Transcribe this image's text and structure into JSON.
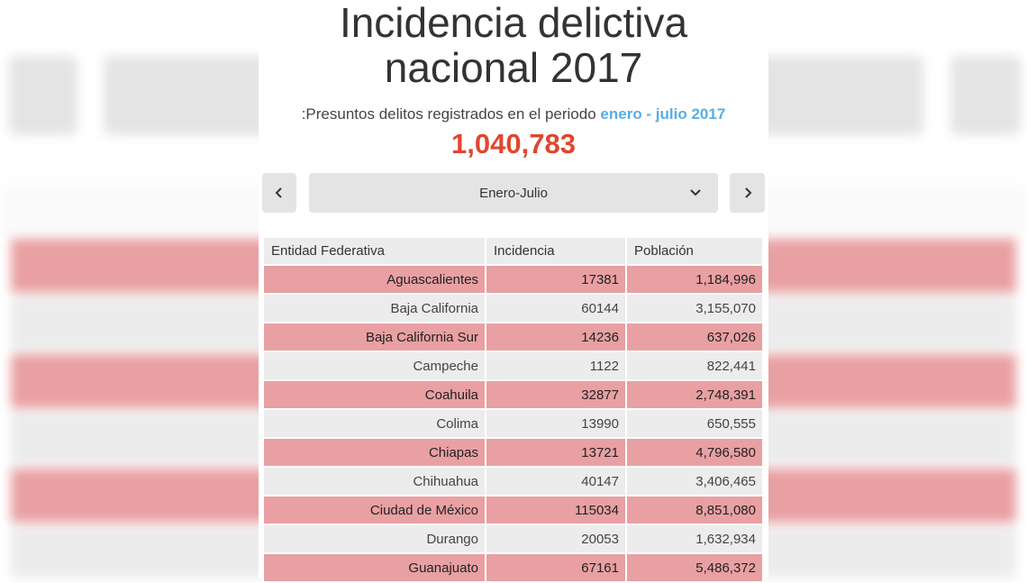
{
  "title_line1": "Incidencia delictiva",
  "title_line2": "nacional 2017",
  "subtitle_prefix": ":Presuntos delitos registrados en el periodo ",
  "subtitle_period": "enero - julio 2017",
  "total": "1,040,783",
  "nav": {
    "prev_icon": "chevron-left-icon",
    "next_icon": "chevron-right-icon",
    "selected": "Enero-Julio"
  },
  "colors": {
    "highlight_row": "#e9a0a2",
    "plain_row": "#ececec",
    "total": "#e0462e",
    "period": "#5aaee0"
  },
  "table": {
    "headers": [
      "Entidad Federativa",
      "Incidencia",
      "Población"
    ],
    "rows": [
      [
        "Aguascalientes",
        "17381",
        "1,184,996"
      ],
      [
        "Baja California",
        "60144",
        "3,155,070"
      ],
      [
        "Baja California Sur",
        "14236",
        "637,026"
      ],
      [
        "Campeche",
        "1122",
        "822,441"
      ],
      [
        "Coahuila",
        "32877",
        "2,748,391"
      ],
      [
        "Colima",
        "13990",
        "650,555"
      ],
      [
        "Chiapas",
        "13721",
        "4,796,580"
      ],
      [
        "Chihuahua",
        "40147",
        "3,406,465"
      ],
      [
        "Ciudad de México",
        "115034",
        "8,851,080"
      ],
      [
        "Durango",
        "20053",
        "1,632,934"
      ],
      [
        "Guanajuato",
        "67161",
        "5,486,372"
      ]
    ]
  }
}
